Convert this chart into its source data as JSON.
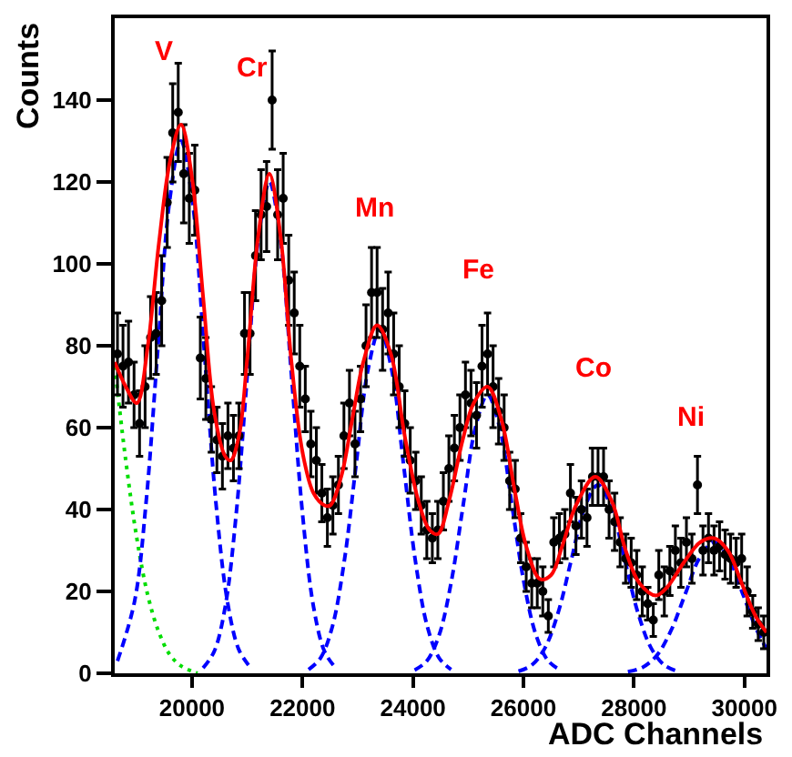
{
  "chart_data": {
    "type": "scatter",
    "xlabel": "ADC Channels",
    "ylabel": "Counts",
    "xlim": [
      18600,
      30400
    ],
    "ylim": [
      0,
      160
    ],
    "xticks": [
      20000,
      22000,
      24000,
      26000,
      28000,
      30000
    ],
    "yticks": [
      0,
      20,
      40,
      60,
      80,
      100,
      120,
      140
    ],
    "annotations": [
      "V",
      "Cr",
      "Mn",
      "Fe",
      "Co",
      "Ni"
    ],
    "series": [
      {
        "type": "line",
        "color": "#00dd00",
        "line_style": "dotted",
        "marker": "none",
        "x": [
          18600,
          18800,
          19000,
          19200,
          19400,
          19600,
          19800,
          20000,
          20100
        ],
        "values": [
          75,
          52,
          33,
          19,
          10,
          4.5,
          1.8,
          0.5,
          0
        ]
      },
      {
        "type": "line",
        "color": "#0000ff",
        "line_style": "dashed",
        "marker": "none",
        "x": [
          18650,
          18960,
          19170,
          19380,
          19590,
          19800,
          20010,
          20220,
          20430,
          20640,
          20850,
          21060
        ],
        "values": [
          3,
          17.6,
          42,
          79,
          115,
          130,
          115,
          79,
          42,
          17.6,
          5.7,
          1.4
        ]
      },
      {
        "type": "line",
        "color": "#0000ff",
        "line_style": "dashed",
        "marker": "none",
        "x": [
          20200,
          20400,
          20600,
          20800,
          21000,
          21200,
          21400,
          21600,
          21800,
          22000,
          22200,
          22400,
          22600
        ],
        "values": [
          1.3,
          5.3,
          16.2,
          39,
          72.8,
          106,
          120,
          106,
          72.8,
          39,
          16.2,
          5.3,
          1.3
        ]
      },
      {
        "type": "line",
        "color": "#0000ff",
        "line_style": "dashed",
        "marker": "none",
        "x": [
          22110,
          22325,
          22540,
          22755,
          22970,
          23185,
          23400,
          23615,
          23830,
          24045,
          24260,
          24475,
          24690
        ],
        "values": [
          0.9,
          3.7,
          11.4,
          27.3,
          50.9,
          74.1,
          84,
          74.1,
          50.9,
          27.3,
          11.4,
          3.7,
          0.9
        ]
      },
      {
        "type": "line",
        "color": "#0000ff",
        "line_style": "dashed",
        "marker": "none",
        "x": [
          24030,
          24250,
          24470,
          24690,
          24910,
          25130,
          25350,
          25570,
          25790,
          26010,
          26230,
          26450,
          26670
        ],
        "values": [
          0.8,
          3,
          9.2,
          22.1,
          41.2,
          60,
          68,
          60,
          41.2,
          22.1,
          9.2,
          3,
          0.8
        ]
      },
      {
        "type": "line",
        "color": "#0000ff",
        "line_style": "dashed",
        "marker": "none",
        "x": [
          25910,
          26150,
          26390,
          26630,
          26870,
          27110,
          27350,
          27590,
          27830,
          28070,
          28310,
          28550,
          28790
        ],
        "values": [
          0.5,
          2,
          6.2,
          14.9,
          27.9,
          40.6,
          46,
          40.6,
          27.9,
          14.9,
          6.2,
          2,
          0.5
        ]
      },
      {
        "type": "line",
        "color": "#0000ff",
        "line_style": "dashed",
        "marker": "none",
        "x": [
          27890,
          28150,
          28410,
          28670,
          28930,
          29190,
          29450,
          29710,
          29970,
          30230,
          30400
        ],
        "values": [
          0.4,
          1.4,
          4.3,
          10.4,
          19.4,
          28.2,
          32,
          28.2,
          19.4,
          10.4,
          6
        ]
      },
      {
        "color": "#000000",
        "marker": "circle",
        "x": [
          18650,
          18750,
          18850,
          18950,
          19050,
          19150,
          19250,
          19350,
          19450,
          19550,
          19650,
          19750,
          19850,
          19950,
          20050,
          20150,
          20250,
          20350,
          20450,
          20550,
          20650,
          20750,
          20850,
          20950,
          21050,
          21150,
          21250,
          21350,
          21450,
          21550,
          21650,
          21750,
          21850,
          21950,
          22050,
          22150,
          22250,
          22350,
          22450,
          22550,
          22650,
          22750,
          22850,
          22950,
          23050,
          23150,
          23250,
          23350,
          23450,
          23550,
          23650,
          23750,
          23850,
          23950,
          24050,
          24150,
          24250,
          24350,
          24450,
          24550,
          24650,
          24750,
          24850,
          24950,
          25050,
          25150,
          25250,
          25350,
          25450,
          25550,
          25650,
          25750,
          25850,
          25950,
          26050,
          26150,
          26250,
          26350,
          26450,
          26550,
          26650,
          26750,
          26850,
          26950,
          27050,
          27150,
          27250,
          27350,
          27450,
          27550,
          27650,
          27750,
          27850,
          27950,
          28050,
          28150,
          28250,
          28350,
          28450,
          28550,
          28650,
          28750,
          28850,
          28950,
          29050,
          29150,
          29250,
          29350,
          29450,
          29550,
          29650,
          29750,
          29850,
          29950,
          30050,
          30150,
          30250,
          30350
        ],
        "values": [
          78,
          75,
          76,
          68,
          61,
          70,
          82,
          83,
          91,
          115,
          132,
          137,
          122,
          116,
          118,
          77,
          72,
          62,
          57,
          53,
          58,
          55,
          58,
          83,
          83,
          102,
          112,
          114,
          140,
          112,
          116,
          96,
          88,
          75,
          67,
          56,
          52,
          44,
          38,
          41,
          46,
          58,
          66,
          56,
          67,
          80,
          93,
          93,
          84,
          88,
          78,
          70,
          61,
          52,
          47,
          41,
          35,
          33,
          35,
          42,
          50,
          55,
          60,
          68,
          66,
          63,
          75,
          78,
          70,
          64,
          60,
          47,
          45,
          33,
          26,
          22,
          22,
          20,
          14,
          32,
          33,
          34,
          44,
          36,
          40,
          38,
          48,
          48,
          48,
          40,
          37,
          32,
          28,
          27,
          24,
          20,
          17,
          13,
          24,
          20,
          25,
          30,
          27,
          32,
          28,
          46,
          30,
          33,
          30,
          31,
          29,
          28,
          27,
          28,
          20,
          15,
          12,
          10
        ],
        "errors": [
          10,
          10,
          10,
          8,
          8,
          10,
          10,
          10,
          11,
          11,
          12,
          12,
          12,
          11,
          11,
          10,
          10,
          8,
          8,
          8,
          8,
          8,
          8,
          10,
          10,
          11,
          11,
          11,
          12,
          11,
          11,
          11,
          10,
          10,
          8,
          8,
          8,
          7,
          7,
          7,
          7,
          8,
          8,
          8,
          8,
          10,
          11,
          11,
          10,
          10,
          10,
          10,
          8,
          8,
          7,
          7,
          7,
          6,
          7,
          7,
          8,
          8,
          8,
          8,
          8,
          8,
          10,
          10,
          10,
          8,
          8,
          7,
          7,
          6,
          6,
          6,
          6,
          6,
          4,
          6,
          6,
          6,
          7,
          7,
          7,
          7,
          7,
          7,
          7,
          7,
          7,
          6,
          6,
          6,
          6,
          6,
          4,
          4,
          6,
          6,
          6,
          6,
          6,
          6,
          6,
          7,
          6,
          6,
          6,
          6,
          6,
          6,
          6,
          6,
          6,
          4,
          4,
          4
        ]
      },
      {
        "type": "line",
        "color": "#ff0000",
        "line_style": "solid",
        "marker": "none",
        "x": [
          18600,
          18800,
          19000,
          19200,
          19400,
          19600,
          19800,
          20000,
          20200,
          20400,
          20600,
          20700,
          20850,
          21000,
          21200,
          21400,
          21600,
          21800,
          22000,
          22200,
          22400,
          22500,
          22700,
          22900,
          23100,
          23350,
          23600,
          23850,
          24100,
          24300,
          24450,
          24650,
          24900,
          25100,
          25350,
          25600,
          25850,
          26050,
          26300,
          26500,
          26700,
          26950,
          27300,
          27600,
          27850,
          28100,
          28400,
          28600,
          28900,
          29200,
          29450,
          29700,
          29950,
          30200,
          30400
        ],
        "values": [
          76,
          70,
          66,
          80,
          105,
          125,
          134,
          121,
          92,
          64,
          53,
          52,
          58,
          77,
          107,
          122,
          107,
          76,
          54,
          44,
          41,
          41,
          48,
          62,
          76,
          85,
          78,
          58,
          42,
          35,
          34,
          42,
          57,
          66,
          70,
          62,
          44,
          31,
          23,
          24,
          31,
          41,
          48,
          42,
          30,
          22,
          19,
          21,
          27,
          32,
          33,
          30,
          22,
          14,
          10
        ]
      }
    ]
  }
}
